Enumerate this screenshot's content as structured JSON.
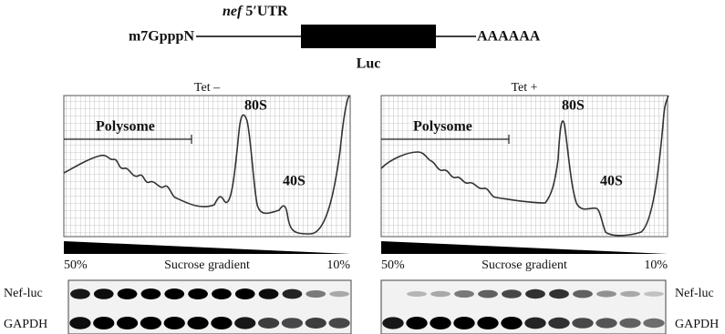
{
  "construct": {
    "cap": "m7GpppN",
    "utr_gene": "nef",
    "utr_label": "5′UTR",
    "orf": "Luc",
    "tail": "AAAAAA"
  },
  "panels": [
    {
      "title": "Tet –",
      "polysome": "Polysome",
      "peak_80s": "80S",
      "peak_40s": "40S",
      "gradient_high": "50%",
      "gradient_label": "Sucrose gradient",
      "gradient_low": "10%",
      "blot_top": "Nef-luc",
      "blot_bottom": "GAPDH"
    },
    {
      "title": "Tet +",
      "polysome": "Polysome",
      "peak_80s": "80S",
      "peak_40s": "40S",
      "gradient_high": "50%",
      "gradient_label": "Sucrose gradient",
      "gradient_low": "10%",
      "blot_top": "Nef-luc",
      "blot_bottom": "GAPDH"
    }
  ]
}
